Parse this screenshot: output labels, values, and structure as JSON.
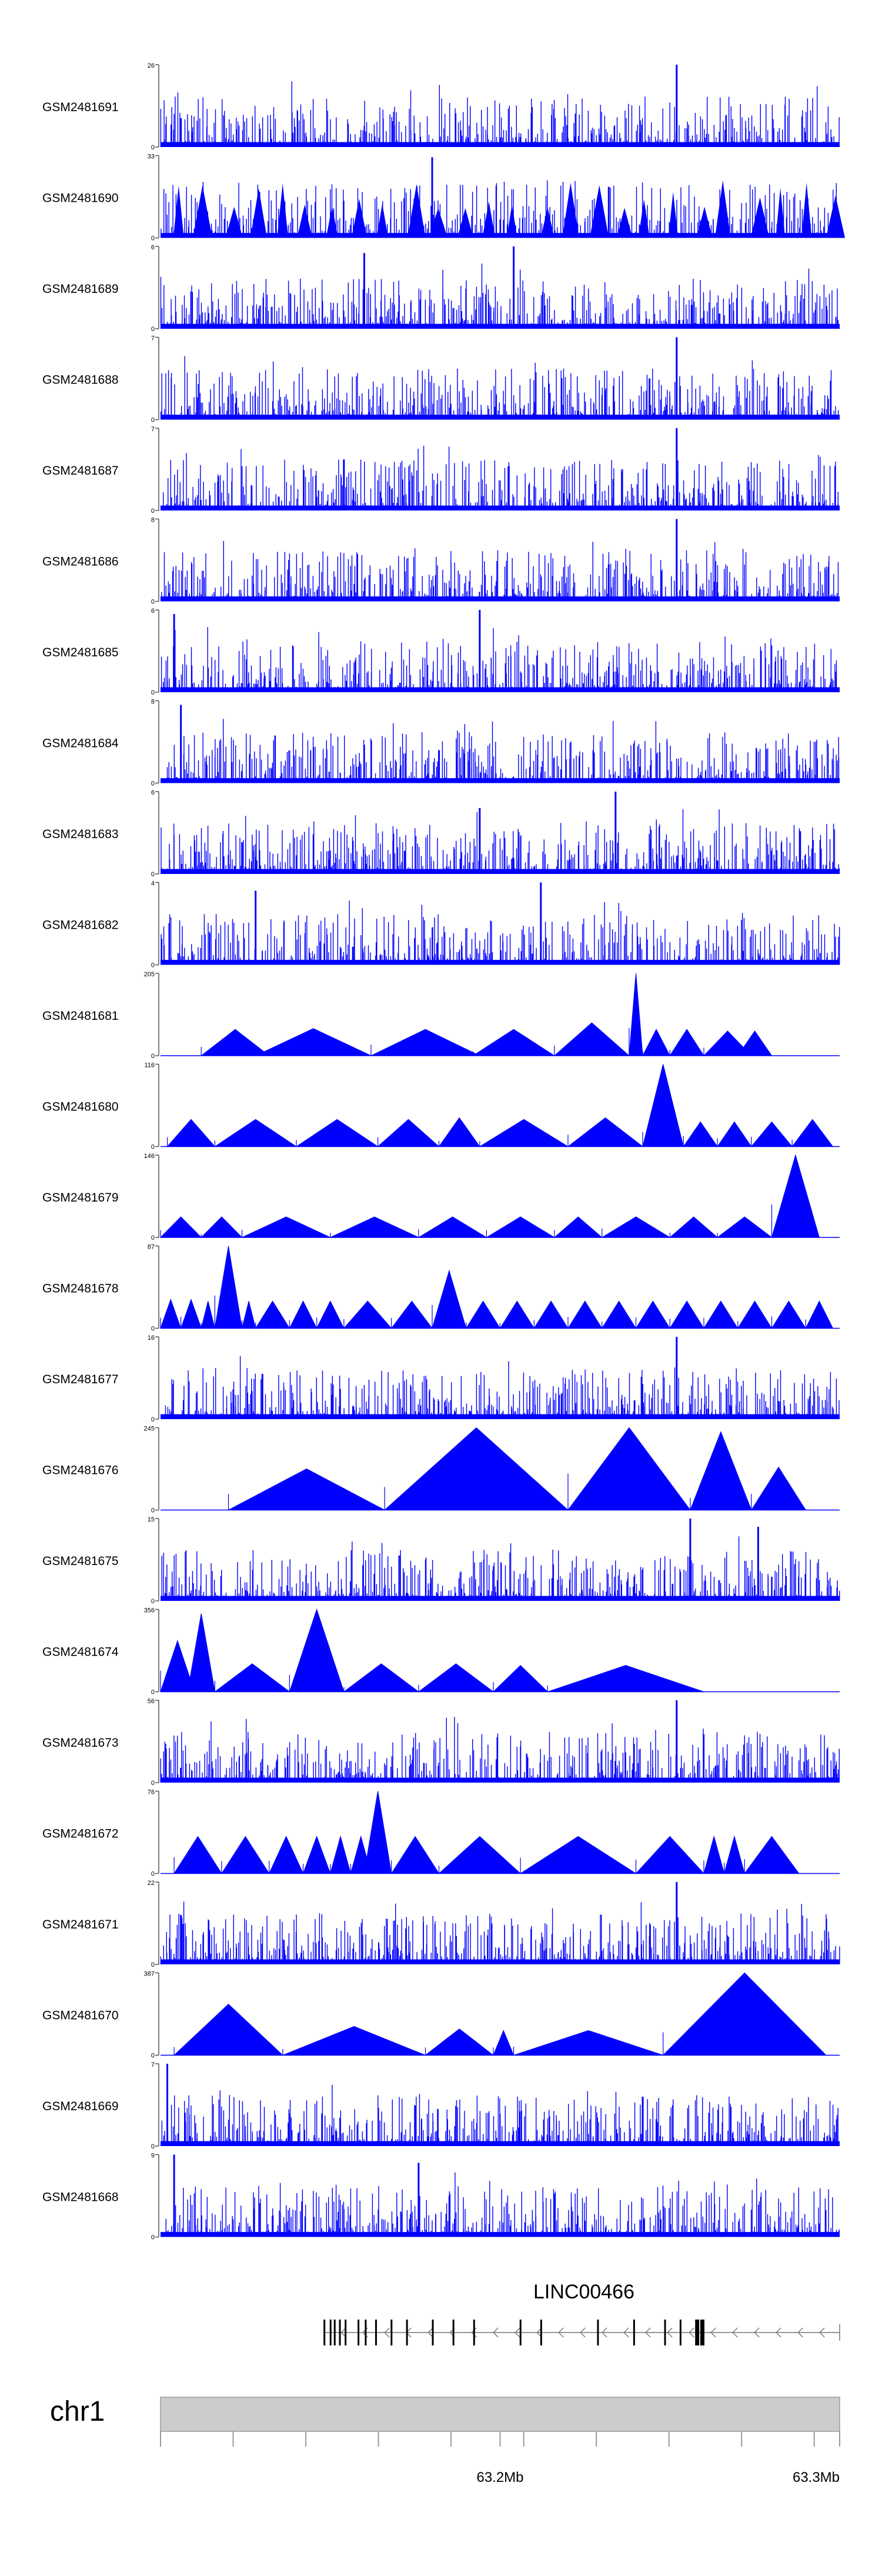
{
  "chart_data": {
    "type": "area",
    "title": "",
    "color": "#0000ff",
    "x_axis": {
      "label": "chr1",
      "ticks": [
        {
          "value": 63.2,
          "label": "63.2Mb"
        },
        {
          "value": 63.3,
          "label": "63.3Mb"
        }
      ],
      "range_mb": [
        63.1,
        63.3
      ]
    },
    "gene_track": {
      "name": "LINC00466",
      "strand": "minus",
      "start_mb": 63.148,
      "end_mb": 63.3
    },
    "tracks": [
      {
        "name": "GSM2481691",
        "ymax": 26,
        "style": "dense",
        "peaks": [
          [
            0.76,
            1.0
          ],
          [
            0.03,
            0.35
          ]
        ]
      },
      {
        "name": "GSM2481690",
        "ymax": 33,
        "style": "spiky",
        "peaks": [
          [
            0.4,
            0.98
          ],
          [
            0.66,
            0.62
          ]
        ]
      },
      {
        "name": "GSM2481689",
        "ymax": 6,
        "style": "dense",
        "peaks": [
          [
            0.52,
            1.0
          ],
          [
            0.3,
            0.92
          ]
        ]
      },
      {
        "name": "GSM2481688",
        "ymax": 7,
        "style": "dense",
        "peaks": [
          [
            0.76,
            1.0
          ],
          [
            0.72,
            0.5
          ]
        ]
      },
      {
        "name": "GSM2481687",
        "ymax": 7,
        "style": "dense",
        "peaks": [
          [
            0.76,
            1.0
          ],
          [
            0.27,
            0.62
          ]
        ]
      },
      {
        "name": "GSM2481686",
        "ymax": 8,
        "style": "dense",
        "peaks": [
          [
            0.76,
            1.0
          ],
          [
            0.66,
            0.45
          ]
        ]
      },
      {
        "name": "GSM2481685",
        "ymax": 6,
        "style": "dense",
        "peaks": [
          [
            0.47,
            1.0
          ],
          [
            0.02,
            0.95
          ]
        ]
      },
      {
        "name": "GSM2481684",
        "ymax": 8,
        "style": "dense",
        "peaks": [
          [
            0.03,
            0.95
          ],
          [
            0.41,
            0.4
          ]
        ]
      },
      {
        "name": "GSM2481683",
        "ymax": 6,
        "style": "dense",
        "peaks": [
          [
            0.67,
            1.0
          ],
          [
            0.47,
            0.8
          ]
        ]
      },
      {
        "name": "GSM2481682",
        "ymax": 4,
        "style": "dense",
        "peaks": [
          [
            0.56,
            1.0
          ],
          [
            0.14,
            0.9
          ]
        ]
      },
      {
        "name": "GSM2481681",
        "ymax": 205,
        "style": "triangles",
        "segments": [
          [
            0.06,
            0.16,
            0.32
          ],
          [
            0.14,
            0.31,
            0.33
          ],
          [
            0.31,
            0.47,
            0.32
          ],
          [
            0.46,
            0.58,
            0.32
          ],
          [
            0.58,
            0.69,
            0.4
          ],
          [
            0.69,
            0.71,
            1.0
          ],
          [
            0.71,
            0.75,
            0.32
          ],
          [
            0.75,
            0.8,
            0.32
          ],
          [
            0.8,
            0.87,
            0.3
          ],
          [
            0.85,
            0.9,
            0.3
          ]
        ]
      },
      {
        "name": "GSM2481680",
        "ymax": 116,
        "style": "triangles",
        "segments": [
          [
            0.01,
            0.08,
            0.33
          ],
          [
            0.08,
            0.2,
            0.33
          ],
          [
            0.2,
            0.32,
            0.33
          ],
          [
            0.32,
            0.41,
            0.33
          ],
          [
            0.41,
            0.47,
            0.35
          ],
          [
            0.47,
            0.6,
            0.33
          ],
          [
            0.6,
            0.71,
            0.35
          ],
          [
            0.71,
            0.77,
            1.0
          ],
          [
            0.77,
            0.82,
            0.3
          ],
          [
            0.82,
            0.87,
            0.3
          ],
          [
            0.87,
            0.93,
            0.3
          ],
          [
            0.93,
            0.99,
            0.33
          ]
        ]
      },
      {
        "name": "GSM2481679",
        "ymax": 146,
        "style": "triangles",
        "segments": [
          [
            0.0,
            0.06,
            0.25
          ],
          [
            0.06,
            0.12,
            0.25
          ],
          [
            0.12,
            0.25,
            0.25
          ],
          [
            0.25,
            0.38,
            0.25
          ],
          [
            0.38,
            0.48,
            0.25
          ],
          [
            0.48,
            0.58,
            0.25
          ],
          [
            0.58,
            0.65,
            0.25
          ],
          [
            0.65,
            0.75,
            0.25
          ],
          [
            0.75,
            0.82,
            0.25
          ],
          [
            0.82,
            0.9,
            0.25
          ],
          [
            0.9,
            0.97,
            1.0
          ]
        ]
      },
      {
        "name": "GSM2481678",
        "ymax": 87,
        "style": "triangles",
        "segments": [
          [
            0.0,
            0.03,
            0.35
          ],
          [
            0.03,
            0.06,
            0.35
          ],
          [
            0.06,
            0.08,
            0.33
          ],
          [
            0.08,
            0.12,
            1.0
          ],
          [
            0.12,
            0.14,
            0.33
          ],
          [
            0.14,
            0.19,
            0.33
          ],
          [
            0.19,
            0.23,
            0.33
          ],
          [
            0.23,
            0.27,
            0.33
          ],
          [
            0.27,
            0.34,
            0.33
          ],
          [
            0.34,
            0.4,
            0.33
          ],
          [
            0.4,
            0.45,
            0.7
          ],
          [
            0.45,
            0.5,
            0.33
          ],
          [
            0.5,
            0.55,
            0.33
          ],
          [
            0.55,
            0.6,
            0.33
          ],
          [
            0.6,
            0.65,
            0.33
          ],
          [
            0.65,
            0.7,
            0.33
          ],
          [
            0.7,
            0.75,
            0.33
          ],
          [
            0.75,
            0.8,
            0.33
          ],
          [
            0.8,
            0.85,
            0.33
          ],
          [
            0.85,
            0.9,
            0.33
          ],
          [
            0.9,
            0.95,
            0.33
          ],
          [
            0.95,
            0.99,
            0.33
          ]
        ]
      },
      {
        "name": "GSM2481677",
        "ymax": 16,
        "style": "dense",
        "peaks": [
          [
            0.76,
            1.0
          ],
          [
            0.15,
            0.55
          ]
        ]
      },
      {
        "name": "GSM2481676",
        "ymax": 245,
        "style": "triangles",
        "segments": [
          [
            0.1,
            0.33,
            0.5
          ],
          [
            0.33,
            0.6,
            1.0
          ],
          [
            0.6,
            0.78,
            1.0
          ],
          [
            0.78,
            0.87,
            0.95
          ],
          [
            0.87,
            0.95,
            0.52
          ]
        ]
      },
      {
        "name": "GSM2481675",
        "ymax": 15,
        "style": "dense",
        "peaks": [
          [
            0.78,
            1.0
          ],
          [
            0.88,
            0.9
          ]
        ]
      },
      {
        "name": "GSM2481674",
        "ymax": 356,
        "style": "triangles",
        "segments": [
          [
            0.0,
            0.05,
            0.62
          ],
          [
            0.04,
            0.08,
            0.95
          ],
          [
            0.08,
            0.19,
            0.34
          ],
          [
            0.19,
            0.27,
            1.0
          ],
          [
            0.27,
            0.38,
            0.34
          ],
          [
            0.38,
            0.49,
            0.34
          ],
          [
            0.49,
            0.57,
            0.32
          ],
          [
            0.57,
            0.8,
            0.32
          ]
        ]
      },
      {
        "name": "GSM2481673",
        "ymax": 56,
        "style": "dense",
        "peaks": [
          [
            0.76,
            1.0
          ],
          [
            0.03,
            0.18
          ]
        ]
      },
      {
        "name": "GSM2481672",
        "ymax": 76,
        "style": "triangles",
        "segments": [
          [
            0.02,
            0.09,
            0.45
          ],
          [
            0.09,
            0.16,
            0.45
          ],
          [
            0.16,
            0.21,
            0.45
          ],
          [
            0.21,
            0.25,
            0.45
          ],
          [
            0.25,
            0.28,
            0.45
          ],
          [
            0.28,
            0.31,
            0.45
          ],
          [
            0.31,
            0.34,
            0.45
          ],
          [
            0.3,
            0.34,
            1.0
          ],
          [
            0.34,
            0.41,
            0.45
          ],
          [
            0.41,
            0.53,
            0.45
          ],
          [
            0.53,
            0.7,
            0.45
          ],
          [
            0.7,
            0.8,
            0.45
          ],
          [
            0.8,
            0.83,
            0.45
          ],
          [
            0.83,
            0.86,
            0.45
          ],
          [
            0.86,
            0.94,
            0.45
          ]
        ]
      },
      {
        "name": "GSM2481671",
        "ymax": 22,
        "style": "dense",
        "peaks": [
          [
            0.76,
            1.0
          ],
          [
            0.03,
            0.6
          ]
        ]
      },
      {
        "name": "GSM2481670",
        "ymax": 387,
        "style": "triangles",
        "segments": [
          [
            0.02,
            0.18,
            0.62
          ],
          [
            0.18,
            0.39,
            0.35
          ],
          [
            0.39,
            0.49,
            0.32
          ],
          [
            0.49,
            0.52,
            0.3
          ],
          [
            0.52,
            0.74,
            0.3
          ],
          [
            0.74,
            0.98,
            1.0
          ]
        ]
      },
      {
        "name": "GSM2481669",
        "ymax": 7,
        "style": "dense",
        "peaks": [
          [
            0.01,
            1.0
          ],
          [
            0.71,
            0.6
          ]
        ]
      },
      {
        "name": "GSM2481668",
        "ymax": 9,
        "style": "dense",
        "peaks": [
          [
            0.02,
            1.0
          ],
          [
            0.38,
            0.9
          ]
        ]
      }
    ]
  }
}
